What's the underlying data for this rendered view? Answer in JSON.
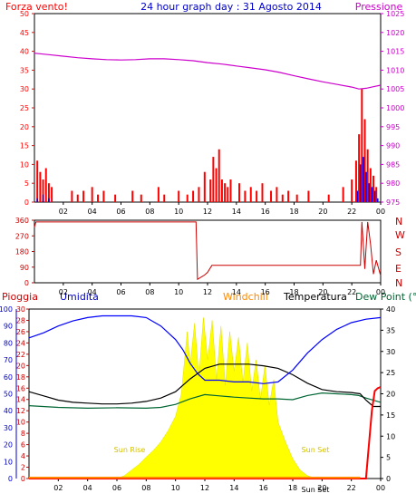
{
  "header": {
    "left": "Forza vento!",
    "title": "24 hour graph day : 31 Agosto 2014",
    "right": "Pressione"
  },
  "mid_header": {
    "pioggia": "Pioggia",
    "umidita": "Umidita",
    "windchill": "Windchill",
    "temperatura": "Temperatura",
    "dewpoint": "Dew Point (°C"
  },
  "colors": {
    "wind": "#ff0000",
    "pressure": "#cc00cc",
    "humidity": "#0000ff",
    "temperature": "#000000",
    "dewpoint": "#006633",
    "rain": "#ff0000",
    "solar": "#ffff00",
    "windchill": "#ff8800",
    "dirlabels": "#cc0000",
    "title": "#0000cc"
  },
  "chart_data": [
    {
      "type": "bar",
      "name": "wind_and_pressure",
      "x_ticks": [
        "02",
        "04",
        "06",
        "08",
        "10",
        "12",
        "14",
        "16",
        "18",
        "20",
        "22",
        "00"
      ],
      "y_left_ticks": [
        0,
        5,
        10,
        15,
        20,
        25,
        30,
        35,
        40,
        45,
        50
      ],
      "y_left_range": [
        0,
        50
      ],
      "y_right_ticks": [
        975,
        980,
        985,
        990,
        995,
        1000,
        1005,
        1010,
        1015,
        1020,
        1025
      ],
      "y_right_range": [
        975,
        1025
      ],
      "pressure": {
        "x": [
          0,
          1,
          2,
          3,
          4,
          5,
          6,
          7,
          8,
          9,
          10,
          11,
          12,
          13,
          14,
          15,
          16,
          17,
          18,
          19,
          20,
          21,
          22,
          22.5,
          23,
          23.5,
          24
        ],
        "y": [
          1014.5,
          1014.1,
          1013.7,
          1013.3,
          1013.0,
          1012.8,
          1012.7,
          1012.8,
          1013.0,
          1013.0,
          1012.8,
          1012.5,
          1012.0,
          1011.6,
          1011.1,
          1010.6,
          1010.1,
          1009.4,
          1008.5,
          1007.7,
          1006.9,
          1006.2,
          1005.5,
          1005.0,
          1005.2,
          1005.6,
          1006.0
        ]
      },
      "wind_gusts": {
        "x": [
          0.2,
          0.4,
          0.6,
          0.8,
          1.0,
          1.2,
          2.6,
          3.0,
          3.4,
          4.0,
          4.4,
          4.8,
          5.6,
          6.8,
          7.4,
          8.6,
          9.0,
          10.0,
          10.6,
          11.0,
          11.4,
          11.8,
          12.2,
          12.4,
          12.6,
          12.8,
          13.0,
          13.2,
          13.4,
          13.6,
          14.2,
          14.6,
          15.0,
          15.4,
          15.8,
          16.4,
          16.8,
          17.2,
          17.6,
          18.2,
          19.0,
          20.4,
          21.4,
          22.0,
          22.3,
          22.5,
          22.7,
          22.9,
          23.1,
          23.3,
          23.5,
          23.7
        ],
        "y": [
          11,
          8,
          6,
          9,
          5,
          4,
          3,
          2,
          3,
          4,
          2,
          3,
          2,
          3,
          2,
          4,
          2,
          3,
          2,
          3,
          4,
          8,
          6,
          12,
          9,
          14,
          6,
          5,
          4,
          6,
          5,
          3,
          4,
          3,
          5,
          3,
          4,
          2,
          3,
          2,
          3,
          2,
          4,
          6,
          11,
          18,
          30,
          22,
          14,
          9,
          7,
          4
        ]
      },
      "wind_speed": {
        "x": [
          0.2,
          0.6,
          1.0,
          22.4,
          22.6,
          22.8,
          23.0,
          23.2,
          23.4,
          23.6,
          23.8
        ],
        "y": [
          1,
          2,
          1,
          3,
          10,
          12,
          8,
          5,
          4,
          3,
          1
        ]
      }
    },
    {
      "type": "line",
      "name": "wind_direction",
      "x_ticks": [
        "02",
        "04",
        "06",
        "08",
        "10",
        "12",
        "14",
        "16",
        "18",
        "20",
        "22",
        "00"
      ],
      "y_ticks": [
        0,
        90,
        180,
        270,
        360
      ],
      "y_range": [
        0,
        360
      ],
      "direction_labels": [
        "N",
        "W",
        "S",
        "E",
        "N"
      ],
      "x": [
        0,
        0.1,
        11.0,
        11.2,
        11.3,
        11.5,
        11.8,
        12.0,
        12.3,
        12.6,
        22.6,
        22.7,
        22.9,
        23.1,
        23.3,
        23.5,
        23.7,
        24
      ],
      "y": [
        320,
        350,
        350,
        350,
        20,
        30,
        45,
        60,
        100,
        100,
        100,
        350,
        80,
        350,
        220,
        50,
        130,
        40
      ]
    },
    {
      "type": "line",
      "name": "temperature_humidity",
      "x_ticks": [
        "02",
        "04",
        "06",
        "08",
        "10",
        "12",
        "14",
        "16",
        "18",
        "20",
        "22",
        "00"
      ],
      "y_humidity_ticks": [
        0,
        10,
        20,
        30,
        40,
        50,
        60,
        70,
        80,
        90,
        100
      ],
      "y_humidity_range": [
        0,
        100
      ],
      "y_rain_ticks": [
        0,
        2,
        4,
        6,
        8,
        10,
        12,
        14,
        16,
        18,
        20,
        22,
        24,
        26,
        28,
        30
      ],
      "y_rain_range": [
        0,
        30
      ],
      "y_temp_ticks": [
        0,
        5,
        10,
        15,
        20,
        25,
        30,
        35,
        40
      ],
      "y_temp_range": [
        0,
        40
      ],
      "annotations": [
        "Sun Rise",
        "Sun Set",
        "Sun Set"
      ],
      "humidity": {
        "x": [
          0,
          1,
          2,
          3,
          4,
          5,
          6,
          7,
          8,
          9,
          10,
          10.5,
          11,
          11.5,
          12,
          13,
          14,
          15,
          16,
          17,
          18,
          19,
          20,
          21,
          22,
          23,
          24
        ],
        "y": [
          83,
          86,
          90,
          93,
          95,
          96,
          96,
          96,
          95,
          90,
          82,
          76,
          68,
          62,
          58,
          58,
          57,
          57,
          56,
          57,
          64,
          74,
          82,
          88,
          92,
          94,
          95
        ]
      },
      "temperature": {
        "x": [
          0,
          1,
          2,
          3,
          4,
          5,
          6,
          7,
          8,
          9,
          10,
          11,
          12,
          13,
          14,
          15,
          16,
          17,
          18,
          19,
          20,
          21,
          22,
          22.6,
          23,
          23.5,
          24
        ],
        "y": [
          20.5,
          19.5,
          18.5,
          18.0,
          17.8,
          17.6,
          17.6,
          17.8,
          18.2,
          19.0,
          20.5,
          23.5,
          26.0,
          27.0,
          27.0,
          27.0,
          26.6,
          26.0,
          24.5,
          22.5,
          21.0,
          20.5,
          20.3,
          20.0,
          18.5,
          17.0,
          17.0
        ]
      },
      "dewpoint": {
        "x": [
          0,
          2,
          4,
          6,
          8,
          9,
          10,
          11,
          12,
          13,
          14,
          15,
          16,
          17,
          18,
          19,
          20,
          21,
          22,
          22.5,
          23,
          24
        ],
        "y": [
          17.2,
          16.8,
          16.6,
          16.7,
          16.6,
          16.8,
          17.5,
          18.8,
          19.8,
          19.5,
          19.2,
          19.0,
          18.8,
          18.8,
          18.6,
          19.6,
          20.2,
          20.0,
          19.8,
          19.6,
          19.0,
          18.0
        ]
      },
      "rain": {
        "x": [
          0,
          22.6,
          23.0,
          23.4,
          23.6,
          23.8,
          24
        ],
        "y": [
          0,
          0,
          0,
          12,
          15.5,
          16.0,
          16.2
        ]
      },
      "solar": {
        "x": [
          0,
          6.0,
          6.5,
          7,
          7.5,
          8,
          8.5,
          9,
          9.5,
          10,
          10.4,
          10.8,
          11,
          11.3,
          11.6,
          11.9,
          12.2,
          12.5,
          12.8,
          13.1,
          13.4,
          13.7,
          14.0,
          14.3,
          14.6,
          14.9,
          15.2,
          15.5,
          15.8,
          16.1,
          16.4,
          16.7,
          17.0,
          17.5,
          18,
          18.5,
          19,
          19.5,
          20,
          24
        ],
        "y": [
          0,
          0,
          0.5,
          1.5,
          2.5,
          3.8,
          5.0,
          6.5,
          8.5,
          11.0,
          15.0,
          26.0,
          20.0,
          27.5,
          18.0,
          28.5,
          21.0,
          28.0,
          17.5,
          27.0,
          16.5,
          26.0,
          19.0,
          25.0,
          17.0,
          24.0,
          15.5,
          21.0,
          14.0,
          20.0,
          13.0,
          17.5,
          10.0,
          6.5,
          3.5,
          1.5,
          0.5,
          0.1,
          0,
          0
        ]
      }
    }
  ]
}
